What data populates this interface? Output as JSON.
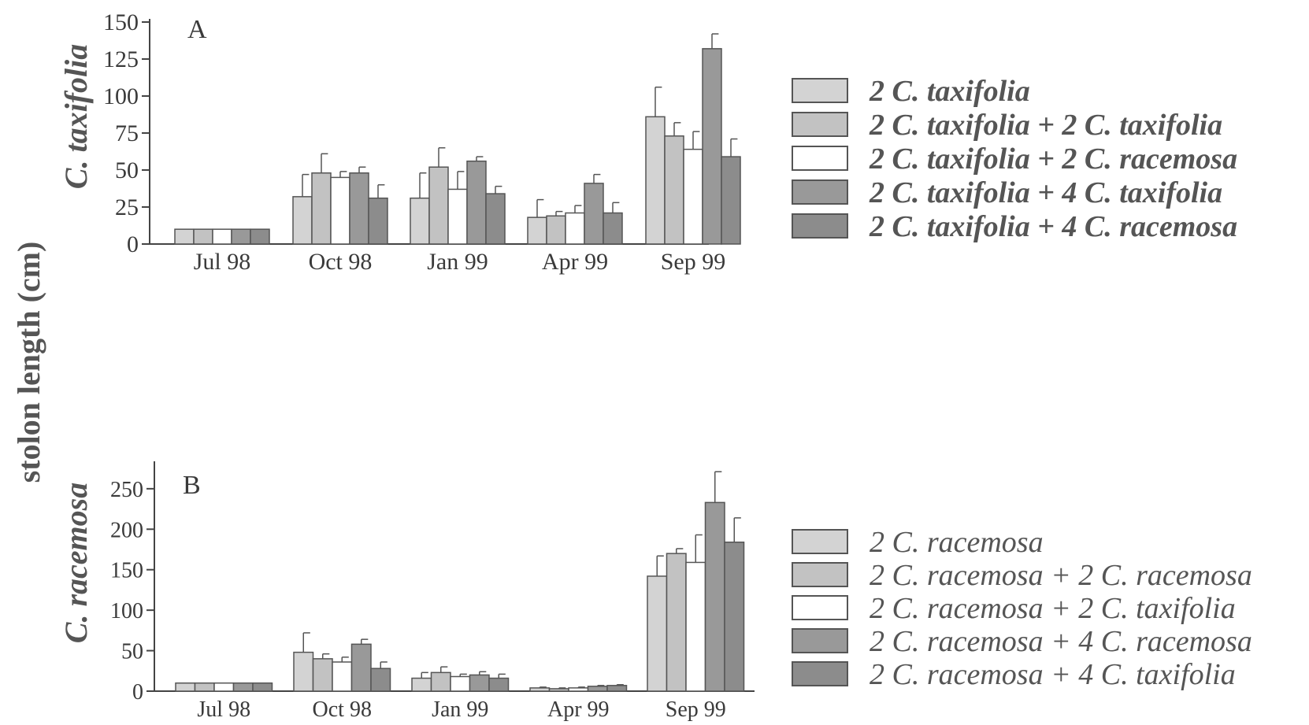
{
  "chart_data": [
    {
      "type": "bar",
      "panel": "A",
      "ylabel": "C. taxifolia",
      "categories": [
        "Jul 98",
        "Oct 98",
        "Jan 99",
        "Apr 99",
        "Sep 99"
      ],
      "ylim": [
        0,
        150
      ],
      "yticks": [
        0,
        25,
        50,
        75,
        100,
        125,
        150
      ],
      "series": [
        {
          "name": "2 C. taxifolia",
          "values": [
            10,
            32,
            31,
            18,
            86
          ],
          "errors": [
            0,
            15,
            17,
            12,
            20
          ],
          "color": "#d3d3d3"
        },
        {
          "name": "2 C. taxifolia + 2 C. taxifolia",
          "values": [
            10,
            48,
            52,
            19,
            73
          ],
          "errors": [
            0,
            13,
            13,
            3,
            9
          ],
          "color": "#c2c2c2"
        },
        {
          "name": "2 C. taxifolia + 2 C. racemosa",
          "values": [
            10,
            45,
            37,
            21,
            64
          ],
          "errors": [
            0,
            4,
            12,
            5,
            12
          ],
          "color": "#ffffff"
        },
        {
          "name": "2 C. taxifolia + 4 C. taxifolia",
          "values": [
            10,
            48,
            56,
            41,
            132
          ],
          "errors": [
            0,
            4,
            3,
            6,
            10
          ],
          "color": "#999999"
        },
        {
          "name": "2 C. taxifolia + 4 C. racemosa",
          "values": [
            10,
            31,
            34,
            21,
            59
          ],
          "errors": [
            0,
            9,
            5,
            7,
            12
          ],
          "color": "#8c8c8c"
        }
      ]
    },
    {
      "type": "bar",
      "panel": "B",
      "ylabel": "C. racemosa",
      "categories": [
        "Jul 98",
        "Oct 98",
        "Jan 99",
        "Apr 99",
        "Sep 99"
      ],
      "ylim": [
        0,
        280
      ],
      "yticks": [
        0,
        50,
        100,
        150,
        200,
        250
      ],
      "series": [
        {
          "name": "2 C. racemosa",
          "values": [
            10,
            48,
            16,
            4,
            142
          ],
          "errors": [
            0,
            24,
            7,
            1,
            25
          ],
          "color": "#d3d3d3"
        },
        {
          "name": "2 C. racemosa + 2 C. racemosa",
          "values": [
            10,
            40,
            23,
            3,
            170
          ],
          "errors": [
            0,
            6,
            7,
            1,
            6
          ],
          "color": "#c2c2c2"
        },
        {
          "name": "2 C. racemosa + 2 C. taxifolia",
          "values": [
            10,
            36,
            18,
            4,
            159
          ],
          "errors": [
            0,
            6,
            3,
            1,
            34
          ],
          "color": "#ffffff"
        },
        {
          "name": "2 C. racemosa + 4 C. racemosa",
          "values": [
            10,
            58,
            20,
            6,
            233
          ],
          "errors": [
            0,
            6,
            4,
            1,
            38
          ],
          "color": "#999999"
        },
        {
          "name": "2 C. racemosa + 4 C. taxifolia",
          "values": [
            10,
            28,
            16,
            7,
            184
          ],
          "errors": [
            0,
            8,
            5,
            1,
            30
          ],
          "color": "#8c8c8c"
        }
      ]
    }
  ],
  "shared_ylabel": "stolon length (cm)"
}
